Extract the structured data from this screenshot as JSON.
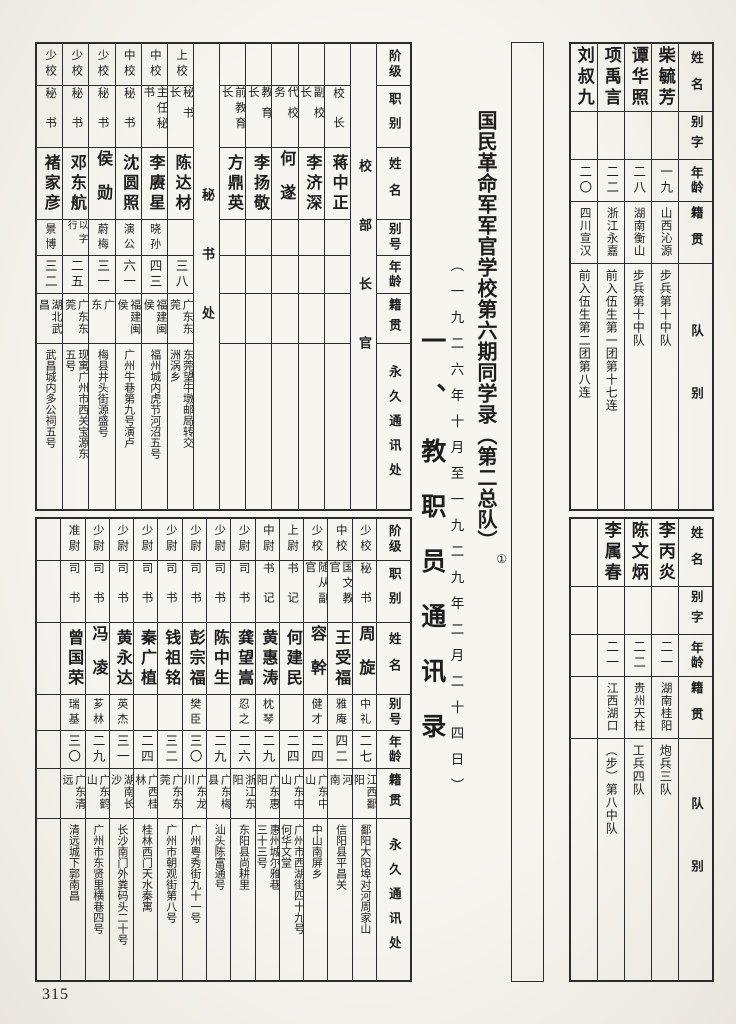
{
  "page": {
    "number": "315"
  },
  "title_block": {
    "main_title": "国民革命军军官学校第六期同学录（第二总队）",
    "annotation": "①",
    "date_note": "（一九二六年十月至一九二九年二月二十四日）",
    "section_heading": "一、教职员通讯录"
  },
  "colors": {
    "paper": "#f3f0ea",
    "ink": "#1d1d1d",
    "rule": "#2c2c2c"
  },
  "left_headers": [
    "阶级",
    "职别",
    "姓名",
    "别号",
    "年龄",
    "籍贯",
    "永久通讯处"
  ],
  "right_headers": [
    "姓名",
    "别字",
    "年龄",
    "籍贯",
    "队别"
  ],
  "staff_top": {
    "columns": [
      {
        "kind": "header"
      },
      {
        "kind": "group",
        "label": "校部长官"
      },
      {
        "kind": "person",
        "rank": "",
        "title": "校长",
        "name": "蒋中正",
        "alias": "",
        "age": "",
        "origin": "",
        "address": ""
      },
      {
        "kind": "person",
        "rank": "",
        "title": "副校长",
        "name": "李济深",
        "alias": "",
        "age": "",
        "origin": "",
        "address": ""
      },
      {
        "kind": "person",
        "rank": "",
        "title": "代校务",
        "name": "何遂",
        "alias": "",
        "age": "",
        "origin": "",
        "address": ""
      },
      {
        "kind": "person",
        "rank": "",
        "title": "教育长",
        "name": "李扬敬",
        "alias": "",
        "age": "",
        "origin": "",
        "address": ""
      },
      {
        "kind": "person",
        "rank": "",
        "title": "前教育长",
        "name": "方鼎英",
        "alias": "",
        "age": "",
        "origin": "",
        "address": ""
      },
      {
        "kind": "group",
        "label": "秘书处"
      },
      {
        "kind": "person",
        "rank": "上校",
        "title": "秘书长",
        "name": "陈达材",
        "alias": "",
        "age": "三八",
        "origin": "广东东莞",
        "address": "东莞望牛墩邮局转交\n洲涡乡"
      },
      {
        "kind": "person",
        "rank": "中校",
        "title": "主任秘书",
        "name": "李赓星",
        "alias": "晓孙",
        "age": "四三",
        "origin": "福建闽侯",
        "address": "福州城内虎节河沼五号"
      },
      {
        "kind": "person",
        "rank": "中校",
        "title": "秘书",
        "name": "沈圆照",
        "alias": "演公",
        "age": "六一",
        "origin": "福建闽侯",
        "address": "广州牛巷第九号演卢"
      },
      {
        "kind": "person",
        "rank": "少校",
        "title": "秘书",
        "name": "侯勋",
        "alias": "蔚梅",
        "age": "三一",
        "origin": "广东",
        "address": "梅县井头街源盛号"
      },
      {
        "kind": "person",
        "rank": "少校",
        "title": "秘书",
        "name": "邓东航",
        "alias": "以字行",
        "age": "二五",
        "origin": "广东东莞",
        "address": "现寓广州市西关宝源东\n五号"
      },
      {
        "kind": "person",
        "rank": "少校",
        "title": "秘书",
        "name": "褚家彦",
        "alias": "景博",
        "age": "三二",
        "origin": "湖北武昌",
        "address": "武昌城内多公祠五号"
      }
    ]
  },
  "staff_bottom": {
    "columns": [
      {
        "kind": "header"
      },
      {
        "kind": "person",
        "rank": "少校",
        "title": "秘书",
        "name": "周旋",
        "alias": "中礼",
        "age": "二七",
        "origin": "江西鄱阳",
        "address": "鄱阳大阳埠对河周家山"
      },
      {
        "kind": "person",
        "rank": "中校",
        "title": "国文教官",
        "name": "王受福",
        "alias": "雅庵",
        "age": "四二",
        "origin": "河南",
        "address": "信阳县平昌关"
      },
      {
        "kind": "person",
        "rank": "少校",
        "title": "随从副官",
        "name": "容幹",
        "alias": "健才",
        "age": "二四",
        "origin": "广东中山",
        "address": "中山南屏乡"
      },
      {
        "kind": "person",
        "rank": "上尉",
        "title": "书记",
        "name": "何建民",
        "alias": "",
        "age": "二四",
        "origin": "广东中山",
        "address": "广州市西湖街四十九号\n何华文堂"
      },
      {
        "kind": "person",
        "rank": "中尉",
        "title": "书记",
        "name": "黄惠涛",
        "alias": "枕琴",
        "age": "二九",
        "origin": "广东惠阳",
        "address": "惠州城尔雅巷\n三十三号"
      },
      {
        "kind": "person",
        "rank": "少尉",
        "title": "司书",
        "name": "龚望嵩",
        "alias": "忍之",
        "age": "二六",
        "origin": "浙江东阳",
        "address": "东阳县尚耕里"
      },
      {
        "kind": "person",
        "rank": "少尉",
        "title": "司书",
        "name": "陈中生",
        "alias": "",
        "age": "二九",
        "origin": "广东梅县",
        "address": "汕头陈富通号"
      },
      {
        "kind": "person",
        "rank": "少尉",
        "title": "司书",
        "name": "彭宗福",
        "alias": "樊臣",
        "age": "三〇",
        "origin": "广东龙川",
        "address": "广州粤秀街九十一号"
      },
      {
        "kind": "person",
        "rank": "少尉",
        "title": "司书",
        "name": "钱祖铭",
        "alias": "",
        "age": "三二",
        "origin": "广东东莞",
        "address": "广州市朝观街第八号"
      },
      {
        "kind": "person",
        "rank": "少尉",
        "title": "司书",
        "name": "秦广植",
        "alias": "",
        "age": "二四",
        "origin": "广西桂林",
        "address": "桂林西门天水秦寓"
      },
      {
        "kind": "person",
        "rank": "少尉",
        "title": "司书",
        "name": "黄永达",
        "alias": "英杰",
        "age": "三一",
        "origin": "湖南长沙",
        "address": "长沙南门外粪码头二十号"
      },
      {
        "kind": "person",
        "rank": "少尉",
        "title": "司书",
        "name": "冯凌",
        "alias": "芗林",
        "age": "二九",
        "origin": "广东鹤山",
        "address": "广州市东贤里横巷四号"
      },
      {
        "kind": "person",
        "rank": "准尉",
        "title": "司书",
        "name": "曾国荣",
        "alias": "瑞基",
        "age": "三〇",
        "origin": "广东清远",
        "address": "清远城下郭南昌"
      },
      {
        "kind": "empty"
      }
    ]
  },
  "cadets_top": {
    "columns": [
      {
        "kind": "header"
      },
      {
        "kind": "person",
        "name": "柴毓芳",
        "alias": "",
        "age": "一九",
        "origin": "山西沁源",
        "unit": "步兵第十中队"
      },
      {
        "kind": "person",
        "name": "谭华照",
        "alias": "",
        "age": "二八",
        "origin": "湖南衡山",
        "unit": "步兵第十中队"
      },
      {
        "kind": "person",
        "name": "项禹言",
        "alias": "",
        "age": "二二",
        "origin": "浙江永嘉",
        "unit": "前入伍生第一团第十七连"
      },
      {
        "kind": "person",
        "name": "刘叔九",
        "alias": "",
        "age": "二〇",
        "origin": "四川宣汉",
        "unit": "前入伍生第二团第八连"
      }
    ]
  },
  "cadets_bottom": {
    "columns": [
      {
        "kind": "header"
      },
      {
        "kind": "person",
        "name": "李丙炎",
        "alias": "",
        "age": "二一",
        "origin": "湖南桂阳",
        "unit": "炮兵三队"
      },
      {
        "kind": "person",
        "name": "陈文炳",
        "alias": "",
        "age": "二二",
        "origin": "贵州天柱",
        "unit": "工兵四队"
      },
      {
        "kind": "person",
        "name": "李属春",
        "alias": "",
        "age": "二一",
        "origin": "江西湖口",
        "unit": "（步）第八中队"
      },
      {
        "kind": "empty"
      }
    ]
  }
}
